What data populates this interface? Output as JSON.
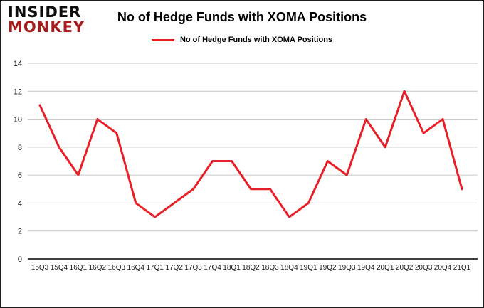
{
  "logo": {
    "line1": "INSIDER",
    "line2": "MONKEY",
    "brand_red": "#a51d1d"
  },
  "header": {
    "title": "No of Hedge Funds with XOMA Positions"
  },
  "legend": {
    "label": "No of Hedge Funds with XOMA Positions"
  },
  "chart_data": {
    "type": "line",
    "title": "No of Hedge Funds with XOMA Positions",
    "xlabel": "",
    "ylabel": "",
    "ylim": [
      0,
      14
    ],
    "ytick_step": 2,
    "grid": true,
    "legend_position": "top",
    "grid_color": "#c6c6c6",
    "axis_color": "#000000",
    "categories": [
      "15Q3",
      "15Q4",
      "16Q1",
      "16Q2",
      "16Q3",
      "16Q4",
      "17Q1",
      "17Q2",
      "17Q3",
      "17Q4",
      "18Q1",
      "18Q2",
      "18Q3",
      "18Q4",
      "19Q1",
      "19Q2",
      "19Q3",
      "19Q4",
      "20Q1",
      "20Q2",
      "20Q3",
      "20Q4",
      "21Q1"
    ],
    "series": [
      {
        "name": "No of Hedge Funds with XOMA Positions",
        "color": "#e81f26",
        "values": [
          11,
          8,
          6,
          10,
          9,
          4,
          3,
          4,
          5,
          7,
          7,
          5,
          5,
          3,
          4,
          7,
          6,
          10,
          8,
          12,
          9,
          10,
          5
        ]
      }
    ]
  }
}
